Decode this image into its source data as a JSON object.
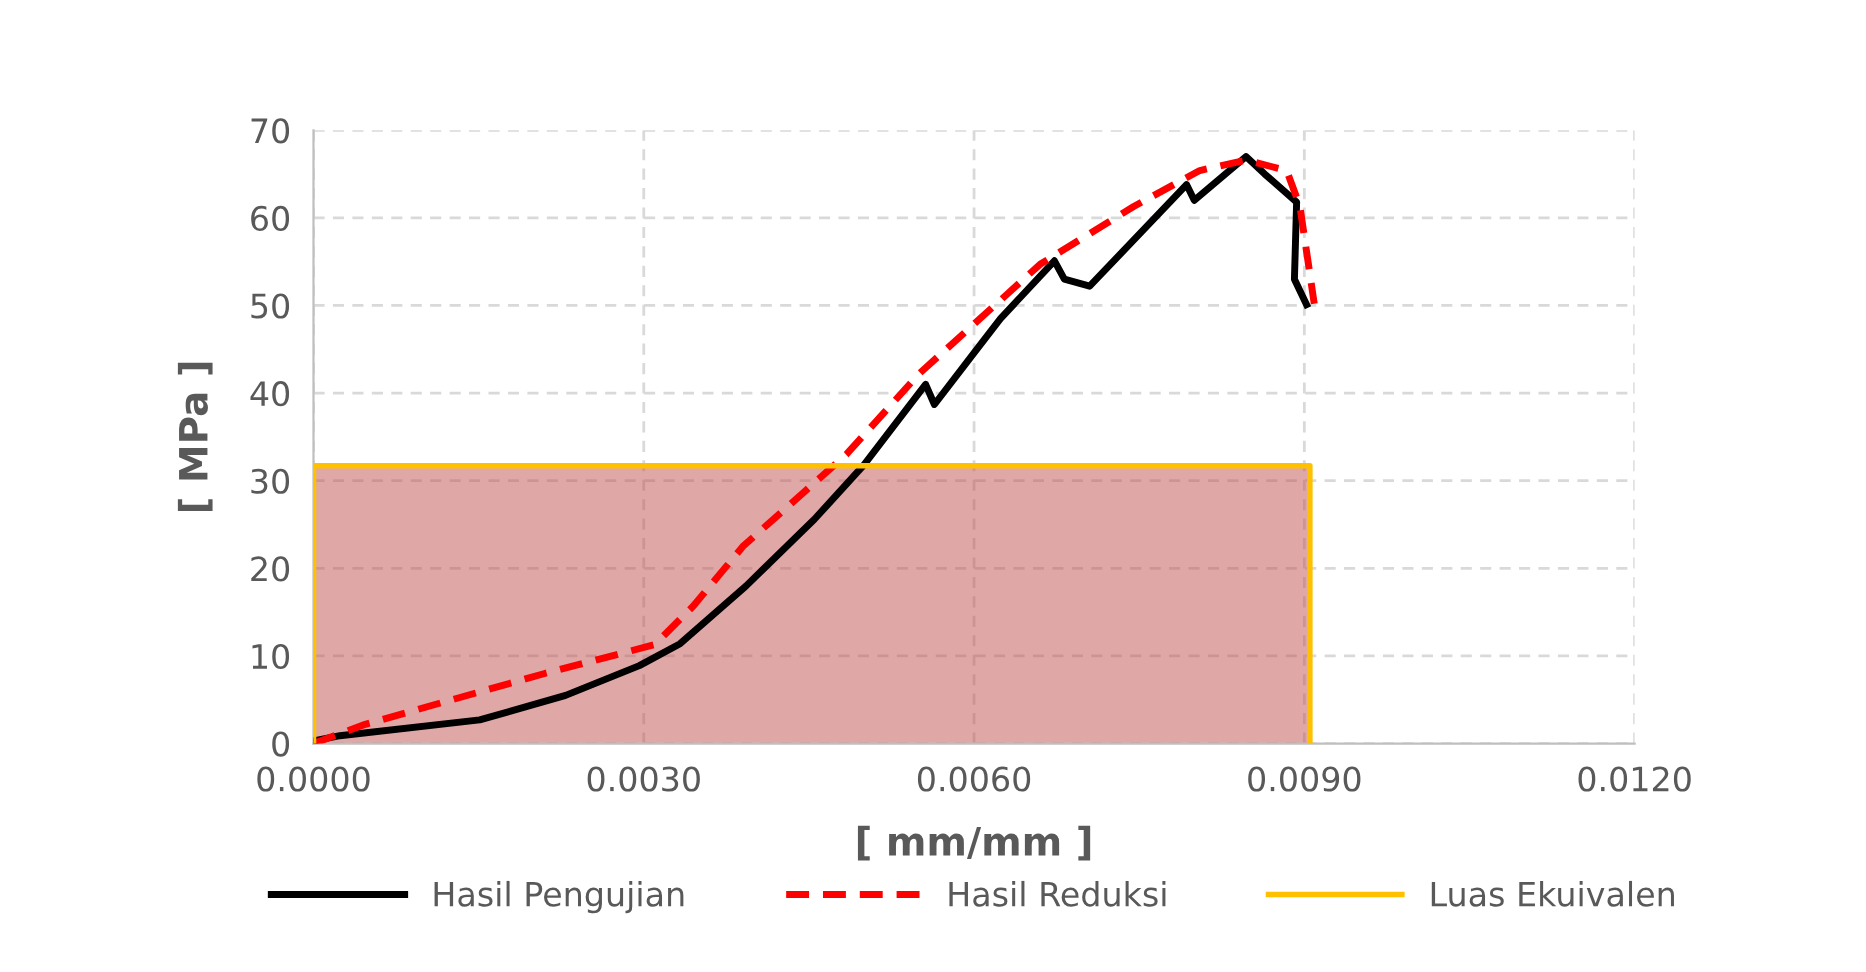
{
  "chart_data": {
    "type": "line",
    "xlabel": "[ mm/mm ]",
    "ylabel": "[ MPa ]",
    "xlim": [
      0,
      0.012
    ],
    "xticks": [
      {
        "value": 0,
        "label": "0.0000"
      },
      {
        "value": 0.003,
        "label": "0.0030"
      },
      {
        "value": 0.006,
        "label": "0.0060"
      },
      {
        "value": 0.009,
        "label": "0.0090"
      },
      {
        "value": 0.012,
        "label": "0.0120"
      }
    ],
    "ylim": [
      0,
      70
    ],
    "yticks": [
      0,
      10,
      20,
      30,
      40,
      50,
      60,
      70
    ],
    "grid": true,
    "legend": "bottom",
    "series": [
      {
        "name": "Luas Ekuivalen",
        "type": "area",
        "color": "#ffc000",
        "x": [
          0,
          0,
          0.00905,
          0.00905
        ],
        "values": [
          0,
          31.7,
          31.7,
          0
        ]
      },
      {
        "name": "Hasil Pengujian",
        "color": "#000000",
        "line_style": "solid",
        "x": [
          0,
          0.00024,
          0.00151,
          0.00229,
          0.00296,
          0.00333,
          0.00393,
          0.00455,
          0.005,
          0.00556,
          0.00564,
          0.006,
          0.00624,
          0.00673,
          0.00682,
          0.00705,
          0.00793,
          0.008,
          0.00847,
          0.00864,
          0.00893,
          0.00891,
          0.00902
        ],
        "values": [
          0.3,
          0.9,
          2.7,
          5.5,
          8.9,
          11.4,
          18,
          25.6,
          31.8,
          41,
          38.7,
          44.6,
          48.5,
          55.1,
          53,
          52.2,
          63.8,
          62,
          67,
          65,
          61.8,
          53,
          50.1
        ]
      },
      {
        "name": "Hasil Reduksi",
        "color": "#ff0000",
        "line_style": "dashed",
        "x": [
          0,
          0.00047,
          0.0021,
          0.0031,
          0.00345,
          0.0039,
          0.00484,
          0.0055,
          0.0066,
          0.00745,
          0.00805,
          0.00847,
          0.00884,
          0.00896,
          0.00909
        ],
        "values": [
          0,
          2.2,
          8,
          11.3,
          15.7,
          22.5,
          33,
          42.2,
          54.7,
          61.3,
          65.4,
          66.6,
          65.4,
          61.3,
          50.2
        ]
      }
    ]
  }
}
